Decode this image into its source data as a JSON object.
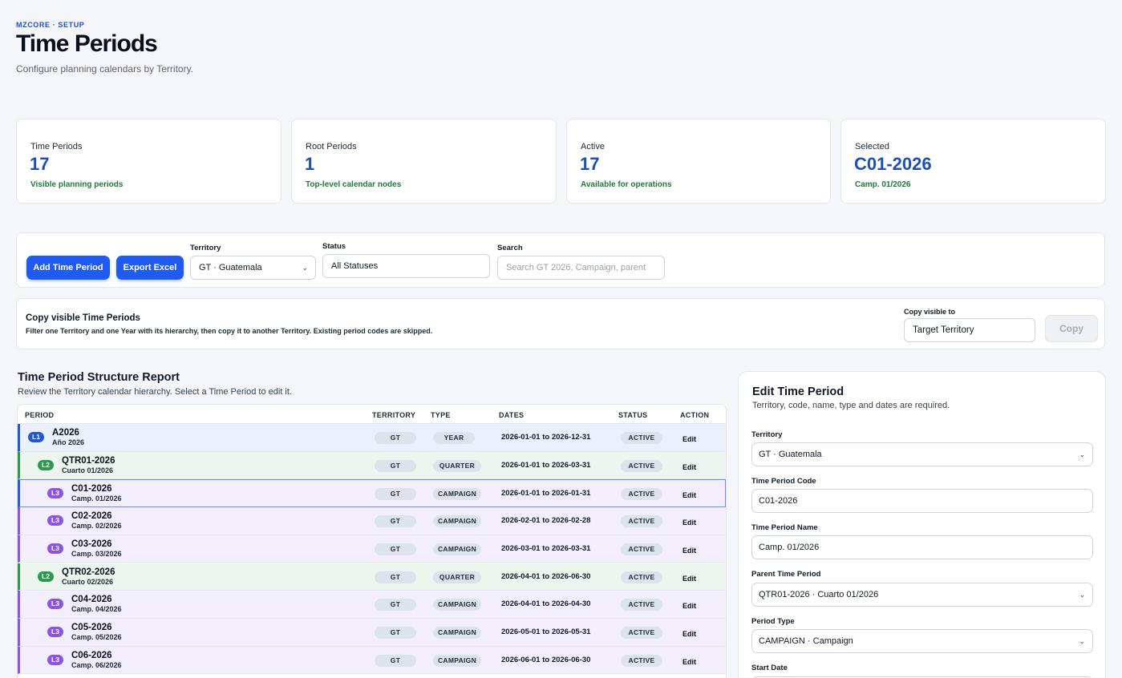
{
  "header": {
    "eyebrow": "MZCORE · SETUP",
    "title": "Time Periods",
    "subtitle": "Configure planning calendars by Territory."
  },
  "stats": [
    {
      "label": "Time Periods",
      "value": "17",
      "note": "Visible planning periods"
    },
    {
      "label": "Root Periods",
      "value": "1",
      "note": "Top-level calendar nodes"
    },
    {
      "label": "Active",
      "value": "17",
      "note": "Available for operations"
    },
    {
      "label": "Selected",
      "value": "C01-2026",
      "note": "Camp. 01/2026"
    }
  ],
  "toolbar": {
    "add_label": "Add Time Period",
    "export_label": "Export Excel",
    "territory_label": "Territory",
    "territory_value": "GT · Guatemala",
    "status_label": "Status",
    "status_value": "All Statuses",
    "search_label": "Search",
    "search_placeholder": "Search GT 2026, Campaign, parent"
  },
  "copy": {
    "title": "Copy visible Time Periods",
    "description": "Filter one Territory and one Year with its hierarchy, then copy it to another Territory. Existing period codes are skipped.",
    "target_label": "Copy visible to",
    "target_placeholder": "Target Territory",
    "button_label": "Copy"
  },
  "report": {
    "title": "Time Period Structure Report",
    "subtitle": "Review the Territory calendar hierarchy. Select a Time Period to edit it.",
    "columns": {
      "period": "PERIOD",
      "territory": "TERRITORY",
      "type": "TYPE",
      "dates": "DATES",
      "status": "STATUS",
      "action": "ACTION"
    },
    "rows": [
      {
        "level": 1,
        "badge": "L1",
        "code": "A2026",
        "name": "Año 2026",
        "territory": "GT",
        "type": "YEAR",
        "dates": "2026-01-01 to 2026-12-31",
        "status": "ACTIVE",
        "action": "Edit"
      },
      {
        "level": 2,
        "badge": "L2",
        "code": "QTR01-2026",
        "name": "Cuarto 01/2026",
        "territory": "GT",
        "type": "QUARTER",
        "dates": "2026-01-01 to 2026-03-31",
        "status": "ACTIVE",
        "action": "Edit"
      },
      {
        "level": 3,
        "badge": "L3",
        "code": "C01-2026",
        "name": "Camp. 01/2026",
        "territory": "GT",
        "type": "CAMPAIGN",
        "dates": "2026-01-01 to 2026-01-31",
        "status": "ACTIVE",
        "action": "Edit"
      },
      {
        "level": 3,
        "badge": "L3",
        "code": "C02-2026",
        "name": "Camp. 02/2026",
        "territory": "GT",
        "type": "CAMPAIGN",
        "dates": "2026-02-01 to 2026-02-28",
        "status": "ACTIVE",
        "action": "Edit"
      },
      {
        "level": 3,
        "badge": "L3",
        "code": "C03-2026",
        "name": "Camp. 03/2026",
        "territory": "GT",
        "type": "CAMPAIGN",
        "dates": "2026-03-01 to 2026-03-31",
        "status": "ACTIVE",
        "action": "Edit"
      },
      {
        "level": 2,
        "badge": "L2",
        "code": "QTR02-2026",
        "name": "Cuarto 02/2026",
        "territory": "GT",
        "type": "QUARTER",
        "dates": "2026-04-01 to 2026-06-30",
        "status": "ACTIVE",
        "action": "Edit"
      },
      {
        "level": 3,
        "badge": "L3",
        "code": "C04-2026",
        "name": "Camp. 04/2026",
        "territory": "GT",
        "type": "CAMPAIGN",
        "dates": "2026-04-01 to 2026-04-30",
        "status": "ACTIVE",
        "action": "Edit"
      },
      {
        "level": 3,
        "badge": "L3",
        "code": "C05-2026",
        "name": "Camp. 05/2026",
        "territory": "GT",
        "type": "CAMPAIGN",
        "dates": "2026-05-01 to 2026-05-31",
        "status": "ACTIVE",
        "action": "Edit"
      },
      {
        "level": 3,
        "badge": "L3",
        "code": "C06-2026",
        "name": "Camp. 06/2026",
        "territory": "GT",
        "type": "CAMPAIGN",
        "dates": "2026-06-01 to 2026-06-30",
        "status": "ACTIVE",
        "action": "Edit"
      }
    ]
  },
  "editor": {
    "title": "Edit Time Period",
    "subtitle": "Territory, code, name, type and dates are required.",
    "territory_label": "Territory",
    "territory_value": "GT · Guatemala",
    "code_label": "Time Period Code",
    "code_value": "C01-2026",
    "name_label": "Time Period Name",
    "name_value": "Camp. 01/2026",
    "parent_label": "Parent Time Period",
    "parent_value": "QTR01-2026 · Cuarto 01/2026",
    "type_label": "Period Type",
    "type_value": "CAMPAIGN · Campaign",
    "start_label": "Start Date"
  }
}
